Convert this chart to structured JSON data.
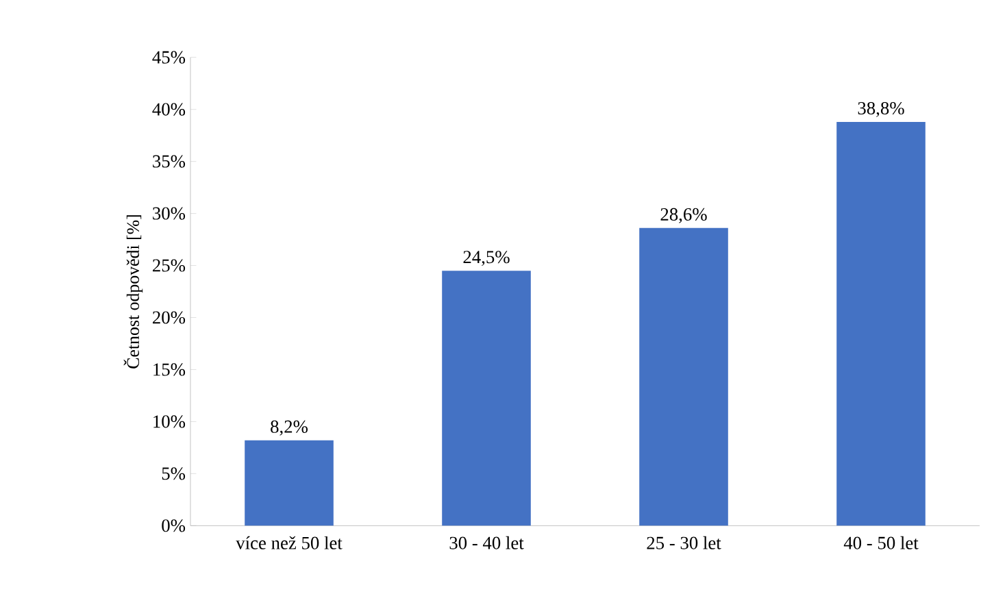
{
  "chart_data": {
    "type": "bar",
    "ylabel": "Četnost odpovědi [%]",
    "categories": [
      "více než 50 let",
      "30 - 40 let",
      "25 - 30 let",
      "40 - 50 let"
    ],
    "values": [
      8.2,
      24.5,
      28.6,
      38.8
    ],
    "value_labels": [
      "8,2%",
      "24,5%",
      "28,6%",
      "38,8%"
    ],
    "color": "#4472c4",
    "ylim": [
      0,
      45
    ],
    "yticks": [
      {
        "value": 0,
        "label": "0%"
      },
      {
        "value": 5,
        "label": "5%"
      },
      {
        "value": 10,
        "label": "10%"
      },
      {
        "value": 15,
        "label": "15%"
      },
      {
        "value": 20,
        "label": "20%"
      },
      {
        "value": 25,
        "label": "25%"
      },
      {
        "value": 30,
        "label": "30%"
      },
      {
        "value": 35,
        "label": "35%"
      },
      {
        "value": 40,
        "label": "40%"
      },
      {
        "value": 45,
        "label": "45%"
      }
    ],
    "grid": false
  }
}
